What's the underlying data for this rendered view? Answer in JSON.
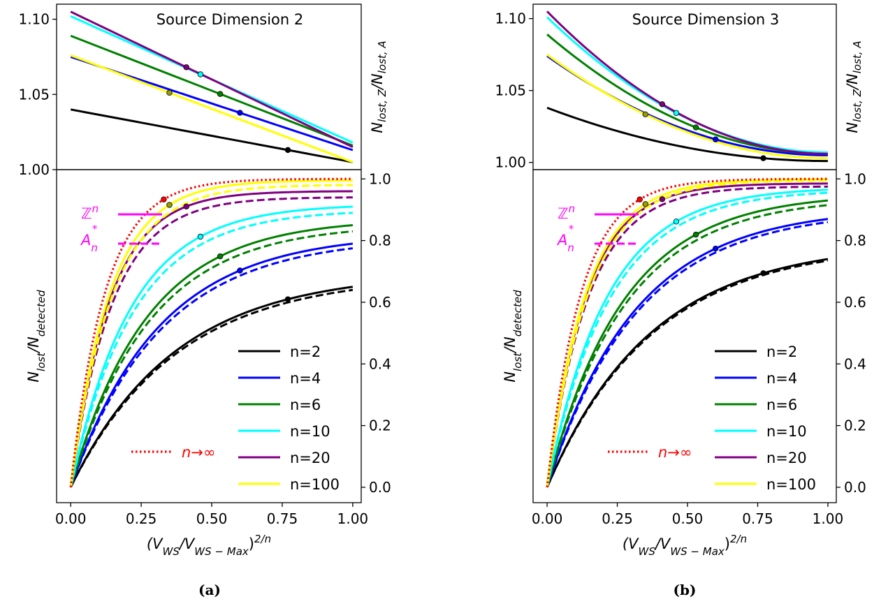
{
  "captions": [
    "(a)",
    "(b)"
  ],
  "legend_entries": [
    "n=2",
    "n=4",
    "n=6",
    "n=10",
    "n=20",
    "n=100"
  ],
  "lattice_legend": {
    "zn_label": "ℤ",
    "zn_sup": "n",
    "an_label": "A",
    "an_sub": "n",
    "an_sup": "*"
  },
  "infinity_label": "n→∞",
  "axis_text": {
    "x_main": "(V",
    "x_sub1": "WS",
    "x_mid": "/V",
    "x_sub2": "WS − Max",
    "x_close": ")",
    "x_sup": "2/n",
    "y_bottom_main": "N",
    "y_bottom_sub1": "lost",
    "y_bottom_mid": "/N",
    "y_bottom_sub2": "detected",
    "y_top_main": "N",
    "y_top_sub1": "lost, Z",
    "y_top_mid": "/N",
    "y_top_sub2": "lost, A"
  },
  "colors": {
    "n2": "#000000",
    "n4": "#0000ff",
    "n6": "#008000",
    "n10": "#00ffff",
    "n20": "#800080",
    "n100": "#ffff00",
    "inf": "#ff0000",
    "lattice_legend": "#ff00ff"
  },
  "chart_data": [
    {
      "type": "line",
      "title": "Source Dimension 2",
      "top": {
        "xlim": [
          -0.05,
          1.03
        ],
        "ylim": [
          1.0,
          1.11
        ],
        "yticks": [
          1.0,
          1.05,
          1.1
        ],
        "ytick_labels": [
          "1.00",
          "1.05",
          "1.10"
        ],
        "series": [
          {
            "name": "n=2",
            "color": "#000000",
            "y0": 1.04,
            "y1": 1.005,
            "curv": 0.0,
            "marker_x": 0.77
          },
          {
            "name": "n=4",
            "color": "#0000ff",
            "y0": 1.075,
            "y1": 1.013,
            "curv": 0.0,
            "marker_x": 0.6
          },
          {
            "name": "n=6",
            "color": "#008000",
            "y0": 1.089,
            "y1": 1.016,
            "curv": 0.0,
            "marker_x": 0.53
          },
          {
            "name": "n=10",
            "color": "#00ffff",
            "y0": 1.102,
            "y1": 1.018,
            "curv": 0.0,
            "marker_x": 0.46
          },
          {
            "name": "n=20",
            "color": "#800080",
            "y0": 1.105,
            "y1": 1.015,
            "curv": 0.0,
            "marker_x": 0.41
          },
          {
            "name": "n=100",
            "color": "#ffff00",
            "y0": 1.076,
            "y1": 1.005,
            "curv": 0.0,
            "marker_x": 0.35
          }
        ]
      },
      "bottom": {
        "xlim": [
          -0.05,
          1.03
        ],
        "ylim": [
          -0.05,
          1.03
        ],
        "xticks": [
          0.0,
          0.25,
          0.5,
          0.75,
          1.0
        ],
        "xtick_labels": [
          "0.00",
          "0.25",
          "0.50",
          "0.75",
          "1.00"
        ],
        "yticks": [
          0.0,
          0.2,
          0.4,
          0.6,
          0.8,
          1.0
        ],
        "ytick_labels": [
          "0.0",
          "0.2",
          "0.4",
          "0.6",
          "0.8",
          "1.0"
        ],
        "series": [
          {
            "name": "n=2",
            "color": "#000000",
            "zn_end": 0.65,
            "an_end": 0.64,
            "marker_x": 0.77
          },
          {
            "name": "n=4",
            "color": "#0000ff",
            "zn_end": 0.79,
            "an_end": 0.775,
            "marker_x": 0.6
          },
          {
            "name": "n=6",
            "color": "#008000",
            "zn_end": 0.85,
            "an_end": 0.83,
            "marker_x": 0.53
          },
          {
            "name": "n=10",
            "color": "#00ffff",
            "zn_end": 0.91,
            "an_end": 0.89,
            "marker_x": 0.46
          },
          {
            "name": "n=20",
            "color": "#800080",
            "zn_end": 0.96,
            "an_end": 0.94,
            "marker_x": 0.41
          },
          {
            "name": "n=100",
            "color": "#ffff00",
            "zn_end": 0.995,
            "an_end": 0.98,
            "marker_x": 0.35
          },
          {
            "name": "n→∞",
            "color": "#ff0000",
            "zn_end": 1.0,
            "an_end": 1.0,
            "marker_x": 0.33,
            "dotted": true
          }
        ]
      }
    },
    {
      "type": "line",
      "title": "Source Dimension 3",
      "top": {
        "xlim": [
          -0.05,
          1.03
        ],
        "ylim": [
          0.995,
          1.11
        ],
        "yticks": [
          1.0,
          1.05,
          1.1
        ],
        "ytick_labels": [
          "1.00",
          "1.05",
          "1.10"
        ],
        "series": [
          {
            "name": "n=2",
            "color": "#000000",
            "y0": 1.038,
            "y1": 1.001,
            "curv": 1.6,
            "marker_x": 0.77
          },
          {
            "name": "n=4",
            "color": "#0000ff",
            "y0": 1.074,
            "y1": 1.005,
            "curv": 1.6,
            "marker_x": 0.6
          },
          {
            "name": "n=6",
            "color": "#008000",
            "y0": 1.089,
            "y1": 1.006,
            "curv": 1.6,
            "marker_x": 0.53
          },
          {
            "name": "n=10",
            "color": "#00ffff",
            "y0": 1.101,
            "y1": 1.007,
            "curv": 1.6,
            "marker_x": 0.46
          },
          {
            "name": "n=20",
            "color": "#800080",
            "y0": 1.105,
            "y1": 1.006,
            "curv": 1.6,
            "marker_x": 0.41
          },
          {
            "name": "n=100",
            "color": "#ffff00",
            "y0": 1.075,
            "y1": 1.003,
            "curv": 1.6,
            "marker_x": 0.35
          }
        ]
      },
      "bottom": {
        "xlim": [
          -0.05,
          1.03
        ],
        "ylim": [
          -0.05,
          1.03
        ],
        "xticks": [
          0.0,
          0.25,
          0.5,
          0.75,
          1.0
        ],
        "xtick_labels": [
          "0.00",
          "0.25",
          "0.50",
          "0.75",
          "1.00"
        ],
        "yticks": [
          0.0,
          0.2,
          0.4,
          0.6,
          0.8,
          1.0
        ],
        "ytick_labels": [
          "0.0",
          "0.2",
          "0.4",
          "0.6",
          "0.8",
          "1.0"
        ],
        "series": [
          {
            "name": "n=2",
            "color": "#000000",
            "zn_end": 0.74,
            "an_end": 0.735,
            "marker_x": 0.77
          },
          {
            "name": "n=4",
            "color": "#0000ff",
            "zn_end": 0.87,
            "an_end": 0.86,
            "marker_x": 0.6
          },
          {
            "name": "n=6",
            "color": "#008000",
            "zn_end": 0.93,
            "an_end": 0.915,
            "marker_x": 0.53
          },
          {
            "name": "n=10",
            "color": "#00ffff",
            "zn_end": 0.965,
            "an_end": 0.955,
            "marker_x": 0.46
          },
          {
            "name": "n=20",
            "color": "#800080",
            "zn_end": 0.985,
            "an_end": 0.975,
            "marker_x": 0.41
          },
          {
            "name": "n=100",
            "color": "#ffff00",
            "zn_end": 0.998,
            "an_end": 0.995,
            "marker_x": 0.35
          },
          {
            "name": "n→∞",
            "color": "#ff0000",
            "zn_end": 1.0,
            "an_end": 1.0,
            "marker_x": 0.33,
            "dotted": true
          }
        ]
      }
    }
  ]
}
